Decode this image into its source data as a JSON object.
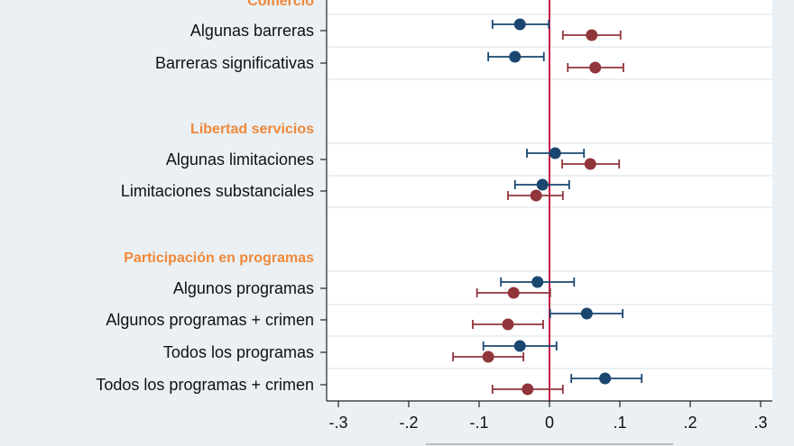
{
  "colors": {
    "series_a": "#1a476f",
    "series_b": "#90353b",
    "reference_line": "#c10534",
    "section_header": "#f0883a",
    "background": "#eaf0f3"
  },
  "chart_data": {
    "type": "scatter",
    "subtype": "coefficient-plot-with-confidence-intervals",
    "xlim": [
      -0.32,
      0.32
    ],
    "xticks": [
      -0.3,
      -0.2,
      -0.1,
      0,
      0.1,
      0.2,
      0.3
    ],
    "xtick_labels": [
      "-.3",
      "-.2",
      "-.1",
      "0",
      ".1",
      ".2",
      ".3"
    ],
    "reference_x": 0,
    "grid": true,
    "sections": [
      {
        "header": "Comercio",
        "rows": [
          {
            "label": "Algunas barreras",
            "a": {
              "est": -0.042,
              "lo": -0.081,
              "hi": -0.001
            },
            "b": {
              "est": 0.06,
              "lo": 0.019,
              "hi": 0.101
            }
          },
          {
            "label": "Barreras significativas",
            "a": {
              "est": -0.049,
              "lo": -0.087,
              "hi": -0.008
            },
            "b": {
              "est": 0.065,
              "lo": 0.026,
              "hi": 0.105
            }
          }
        ]
      },
      {
        "header": "Libertad servicios",
        "rows": [
          {
            "label": "Algunas limitaciones",
            "a": {
              "est": 0.008,
              "lo": -0.032,
              "hi": 0.049
            },
            "b": {
              "est": 0.058,
              "lo": 0.018,
              "hi": 0.099
            }
          },
          {
            "label": "Limitaciones substanciales",
            "a": {
              "est": -0.01,
              "lo": -0.049,
              "hi": 0.028
            },
            "b": {
              "est": -0.019,
              "lo": -0.059,
              "hi": 0.019
            }
          }
        ]
      },
      {
        "header": "Participación en programas",
        "rows": [
          {
            "label": "Algunos programas",
            "a": {
              "est": -0.017,
              "lo": -0.069,
              "hi": 0.035
            },
            "b": {
              "est": -0.051,
              "lo": -0.103,
              "hi": 0.001
            }
          },
          {
            "label": "Algunos programas + crimen",
            "a": {
              "est": 0.053,
              "lo": 0.001,
              "hi": 0.104
            },
            "b": {
              "est": -0.059,
              "lo": -0.109,
              "hi": -0.009
            }
          },
          {
            "label": "Todos los programas",
            "a": {
              "est": -0.042,
              "lo": -0.094,
              "hi": 0.01
            },
            "b": {
              "est": -0.087,
              "lo": -0.137,
              "hi": -0.037
            }
          },
          {
            "label": "Todos los programas + crimen",
            "a": {
              "est": 0.079,
              "lo": 0.031,
              "hi": 0.131
            },
            "b": {
              "est": -0.031,
              "lo": -0.081,
              "hi": 0.019
            }
          }
        ]
      }
    ]
  }
}
